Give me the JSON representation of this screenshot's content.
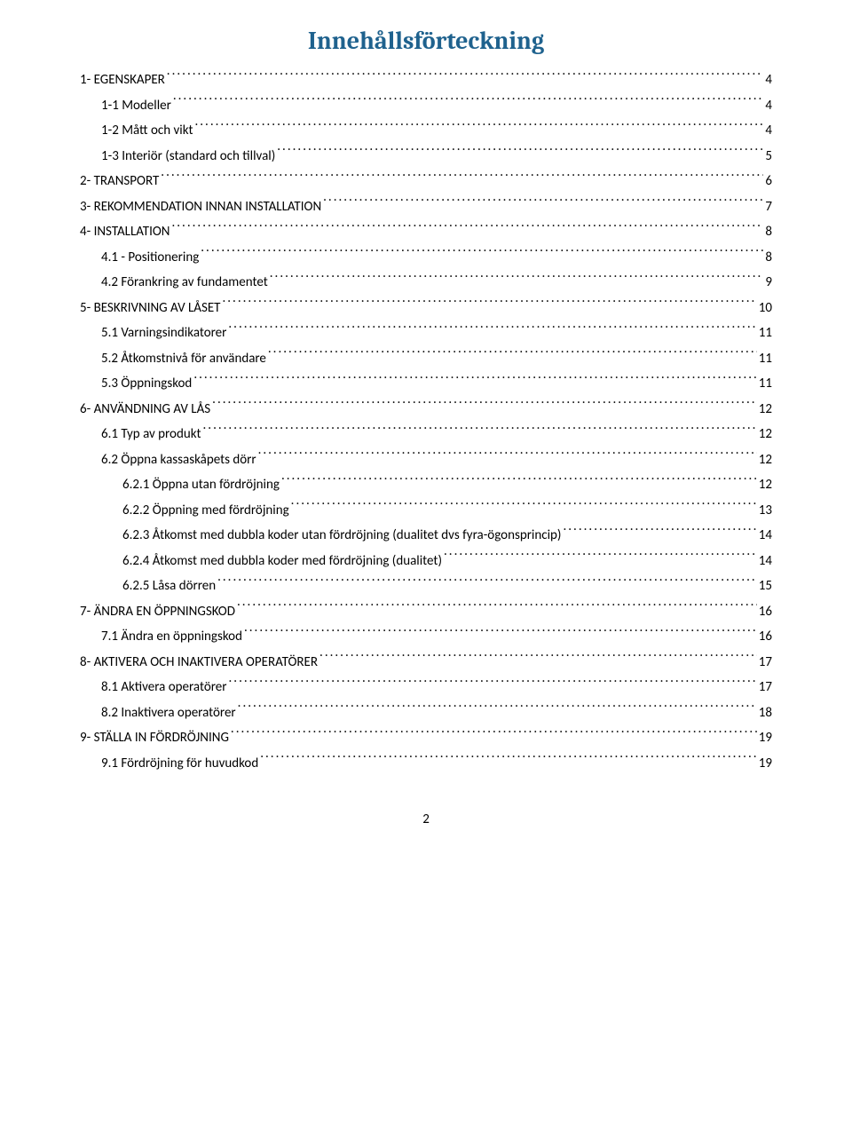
{
  "title": "Innehållsförteckning",
  "footer_page": "2",
  "colors": {
    "title_color": "#1f628e",
    "text_color": "#000000",
    "background": "#ffffff"
  },
  "typography": {
    "title_fontsize_pt": 20,
    "body_fontsize_pt": 11,
    "title_font": "Cambria",
    "body_font": "Calibri"
  },
  "entries": [
    {
      "level": 0,
      "label": "1- EGENSKAPER",
      "page": "4"
    },
    {
      "level": 1,
      "label": "1-1 Modeller",
      "page": "4"
    },
    {
      "level": 1,
      "label": "1-2 Mått och vikt",
      "page": "4"
    },
    {
      "level": 1,
      "label": "1-3 Interiör (standard och tillval)",
      "page": "5"
    },
    {
      "level": 0,
      "label": "2- TRANSPORT",
      "page": "6"
    },
    {
      "level": 0,
      "label": "3- REKOMMENDATION INNAN INSTALLATION",
      "page": "7"
    },
    {
      "level": 0,
      "label": "4- INSTALLATION",
      "page": "8"
    },
    {
      "level": 1,
      "label": "4.1 - Positionering",
      "page": "8"
    },
    {
      "level": 1,
      "label": "4.2 Förankring av fundamentet",
      "page": "9"
    },
    {
      "level": 0,
      "label": "5- BESKRIVNING AV LÅSET",
      "page": "10"
    },
    {
      "level": 1,
      "label": "5.1 Varningsindikatorer",
      "page": "11"
    },
    {
      "level": 1,
      "label": "5.2 Åtkomstnivå för användare",
      "page": "11"
    },
    {
      "level": 1,
      "label": "5.3 Öppningskod",
      "page": "11"
    },
    {
      "level": 0,
      "label": "6- ANVÄNDNING AV LÅS",
      "page": "12"
    },
    {
      "level": 1,
      "label": "6.1 Typ av produkt",
      "page": "12"
    },
    {
      "level": 1,
      "label": "6.2 Öppna kassaskåpets dörr",
      "page": "12"
    },
    {
      "level": 2,
      "label": "6.2.1 Öppna utan fördröjning",
      "page": "12"
    },
    {
      "level": 2,
      "label": "6.2.2 Öppning med fördröjning",
      "page": "13"
    },
    {
      "level": 2,
      "label": "6.2.3 Åtkomst med dubbla koder utan fördröjning (dualitet dvs fyra-ögonsprincip)",
      "page": "14"
    },
    {
      "level": 2,
      "label": "6.2.4 Åtkomst med dubbla koder med fördröjning (dualitet)",
      "page": "14"
    },
    {
      "level": 2,
      "label": "6.2.5 Låsa dörren",
      "page": "15"
    },
    {
      "level": 0,
      "label": "7- ÄNDRA EN ÖPPNINGSKOD",
      "page": "16"
    },
    {
      "level": 1,
      "label": "7.1 Ändra en öppningskod",
      "page": "16"
    },
    {
      "level": 0,
      "label": "8- AKTIVERA OCH INAKTIVERA OPERATÖRER",
      "page": "17"
    },
    {
      "level": 1,
      "label": "8.1 Aktivera operatörer",
      "page": "17"
    },
    {
      "level": 1,
      "label": "8.2 Inaktivera operatörer",
      "page": "18"
    },
    {
      "level": 0,
      "label": "9- STÄLLA IN FÖRDRÖJNING",
      "page": "19"
    },
    {
      "level": 1,
      "label": "9.1 Fördröjning för huvudkod",
      "page": "19"
    }
  ]
}
